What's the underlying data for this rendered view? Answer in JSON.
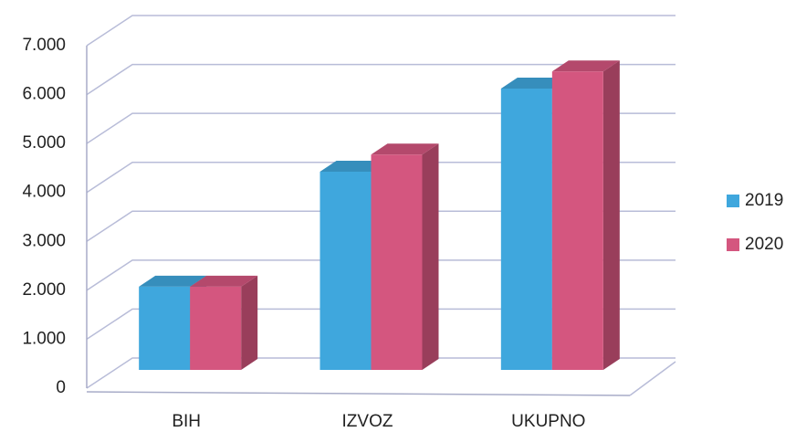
{
  "chart_data": {
    "type": "bar3d",
    "categories": [
      "BIH",
      "IZVOZ",
      "UKUPNO"
    ],
    "series": [
      {
        "name": "2019",
        "color": "#3fa7dd",
        "values": [
          1700,
          4050,
          5750
        ]
      },
      {
        "name": "2020",
        "color": "#d4567f",
        "values": [
          1700,
          4400,
          6100
        ]
      }
    ],
    "ylim": [
      0,
      7000
    ],
    "yticks": [
      {
        "value": 0,
        "label": "0"
      },
      {
        "value": 1000,
        "label": "1.000"
      },
      {
        "value": 2000,
        "label": "2.000"
      },
      {
        "value": 3000,
        "label": "3.000"
      },
      {
        "value": 4000,
        "label": "4.000"
      },
      {
        "value": 5000,
        "label": "5.000"
      },
      {
        "value": 6000,
        "label": "6.000"
      },
      {
        "value": 7000,
        "label": "7.000"
      }
    ],
    "grid": true,
    "legend": "right"
  }
}
